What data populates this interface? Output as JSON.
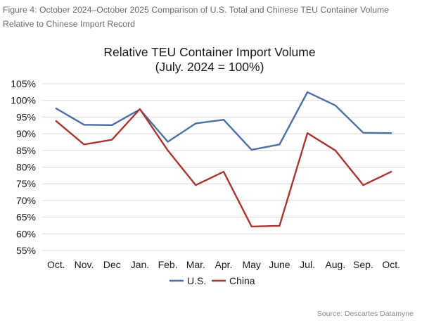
{
  "caption": "Figure 4: October 2024–October 2025 Comparison of U.S. Total and Chinese TEU Container Volume Relative to Chinese Import Record",
  "source": "Source: Descartes Datamyne",
  "colors": {
    "us": "#4a6fa5",
    "china": "#a8352f",
    "gridline": "#d9d9d9"
  },
  "chart_data": {
    "type": "line",
    "title": "Relative TEU Container Import Volume",
    "subtitle": "(July. 2024 = 100%)",
    "xlabel": "",
    "ylabel": "",
    "categories": [
      "Oct.",
      "Nov.",
      "Dec",
      "Jan.",
      "Feb.",
      "Mar.",
      "Apr.",
      "May",
      "June",
      "Jul.",
      "Aug.",
      "Sep.",
      "Oct."
    ],
    "ylim": [
      55,
      105
    ],
    "yticks": [
      55,
      60,
      65,
      70,
      75,
      80,
      85,
      90,
      95,
      100,
      105
    ],
    "ytick_suffix": "%",
    "grid": true,
    "legend": "bottom",
    "series": [
      {
        "name": "U.S.",
        "color": "#4a6fa5",
        "values": [
          97.6,
          92.7,
          92.6,
          97.3,
          87.6,
          93.1,
          94.2,
          85.2,
          86.8,
          102.5,
          98.5,
          90.3,
          90.2
        ]
      },
      {
        "name": "China",
        "color": "#a8352f",
        "values": [
          93.8,
          86.8,
          88.2,
          97.4,
          85.0,
          74.6,
          78.6,
          62.2,
          62.4,
          90.2,
          85.0,
          74.6,
          78.6
        ]
      }
    ]
  }
}
